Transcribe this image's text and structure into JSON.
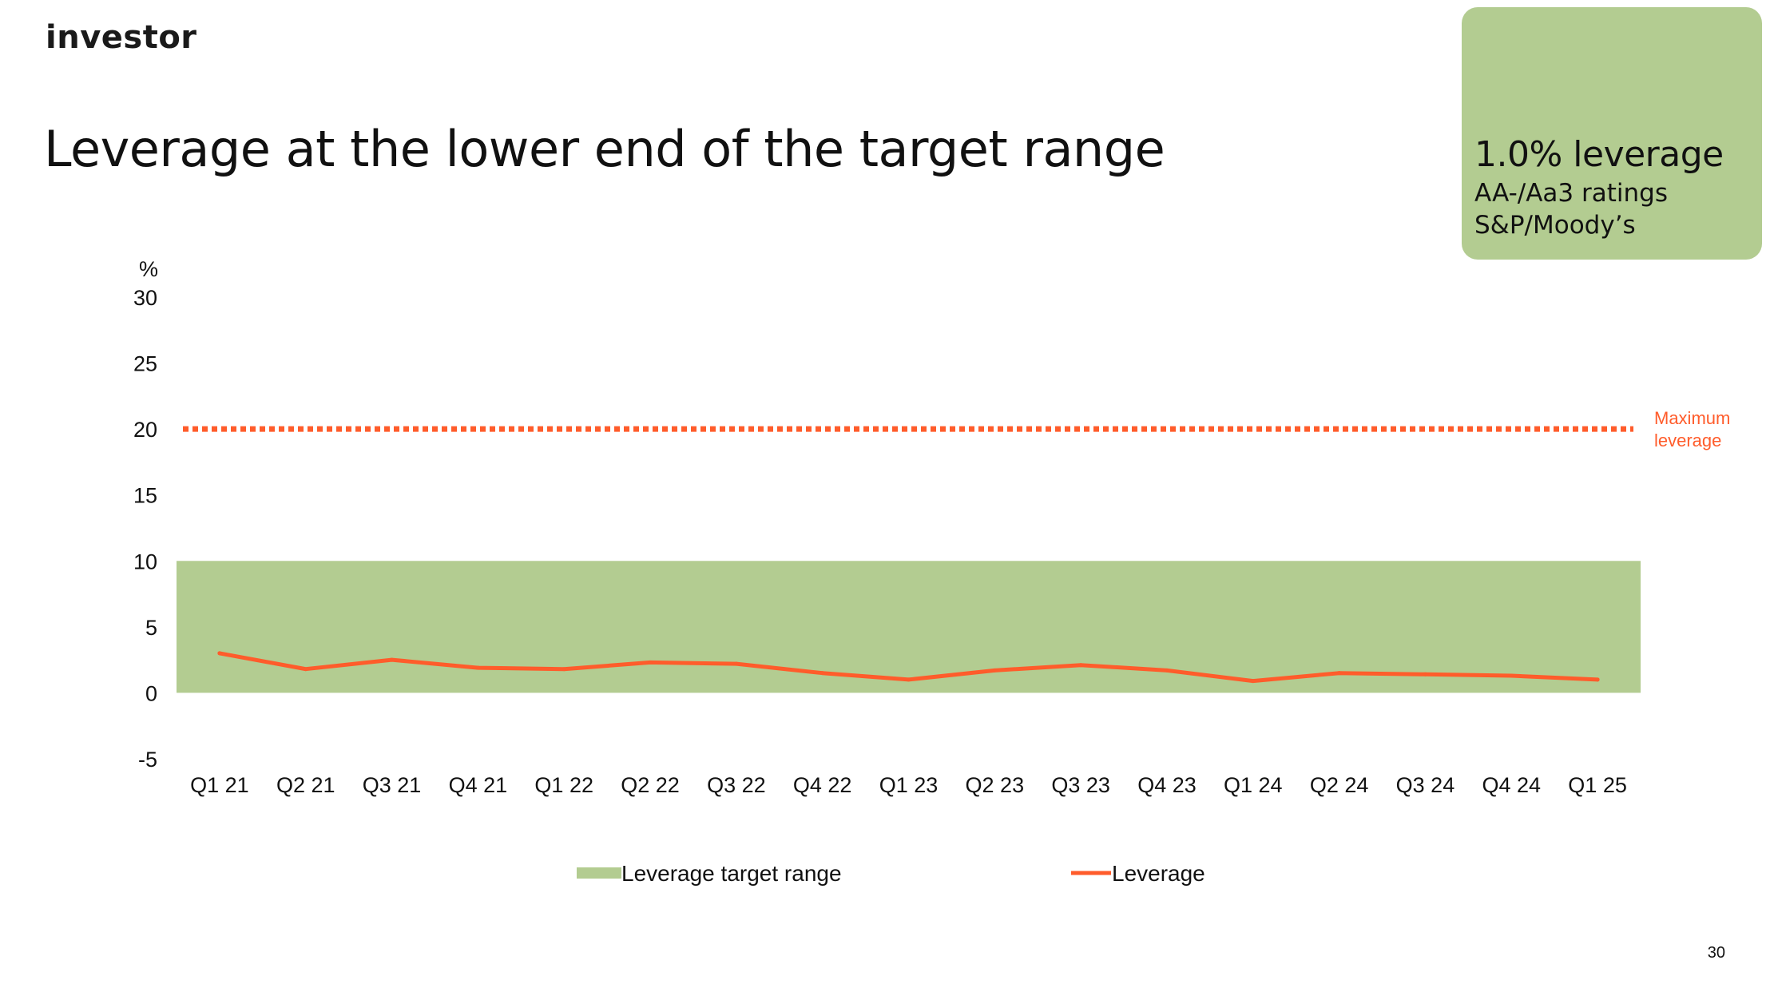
{
  "brand": {
    "logo_text": "investor"
  },
  "slide": {
    "title": "Leverage at the lower end of the target range",
    "page_number": "30"
  },
  "callout": {
    "headline": "1.0% leverage",
    "line1": "AA-/Aa3 ratings",
    "line2": "S&P/Moody’s",
    "color": "#b3cc91"
  },
  "chart_data": {
    "type": "line",
    "y_unit": "%",
    "ylim": [
      -5,
      30
    ],
    "yticks": [
      30,
      25,
      20,
      15,
      10,
      5,
      0,
      -5
    ],
    "grid": false,
    "categories": [
      "Q1 21",
      "Q2 21",
      "Q3 21",
      "Q4 21",
      "Q1 22",
      "Q2 22",
      "Q3 22",
      "Q4 22",
      "Q1 23",
      "Q2 23",
      "Q3 23",
      "Q4 23",
      "Q1 24",
      "Q2 24",
      "Q3 24",
      "Q4 24",
      "Q1 25"
    ],
    "series": [
      {
        "name": "Leverage",
        "type": "line",
        "color": "#ff5c2b",
        "values": [
          3.0,
          1.8,
          2.5,
          1.9,
          1.8,
          2.3,
          2.2,
          1.5,
          1.0,
          1.7,
          2.1,
          1.7,
          0.9,
          1.5,
          1.4,
          1.3,
          1.0
        ]
      }
    ],
    "target_range": {
      "name": "Leverage target range",
      "from": 0,
      "to": 10,
      "color": "#b3cc91"
    },
    "max_line": {
      "value": 20,
      "label_line1": "Maximum",
      "label_line2": "leverage",
      "style": "dotted",
      "color": "#ff5c2b"
    },
    "legend_position": "bottom"
  }
}
